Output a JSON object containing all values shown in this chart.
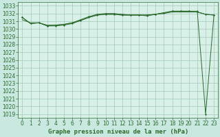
{
  "title": "Graphe pression niveau de la mer (hPa)",
  "background_color": "#c8e8e0",
  "plot_bg_color": "#d8f0e8",
  "grid_color": "#a0c8b8",
  "line_color": "#2d6a2d",
  "ylim": [
    1018.5,
    1033.5
  ],
  "yticks": [
    1019,
    1020,
    1021,
    1022,
    1023,
    1024,
    1025,
    1026,
    1027,
    1028,
    1029,
    1030,
    1031,
    1032,
    1033
  ],
  "xlim": [
    -0.5,
    23.5
  ],
  "xticks": [
    0,
    1,
    2,
    3,
    4,
    5,
    6,
    7,
    8,
    9,
    10,
    11,
    12,
    13,
    14,
    15,
    16,
    17,
    18,
    19,
    20,
    21,
    22,
    23
  ],
  "series": [
    [
      1031.2,
      1030.8,
      1030.8,
      1030.5,
      1030.5,
      1030.6,
      1030.8,
      1031.1,
      1031.5,
      1031.8,
      1031.9,
      1031.9,
      1031.8,
      1031.8,
      1031.8,
      1031.8,
      1031.9,
      1032.0,
      1032.2,
      1032.2,
      1032.2,
      1032.2,
      1031.9,
      1031.8
    ],
    [
      1031.5,
      1030.7,
      1030.8,
      1030.4,
      1030.4,
      1030.5,
      1030.7,
      1031.1,
      1031.5,
      1031.8,
      1031.9,
      1031.9,
      1031.8,
      1031.8,
      1031.8,
      1031.7,
      1031.9,
      1032.1,
      1032.3,
      1032.3,
      1032.3,
      1032.2,
      1031.9,
      1031.8
    ],
    [
      1031.5,
      1030.7,
      1030.8,
      1030.4,
      1030.5,
      1030.6,
      1030.8,
      1031.2,
      1031.6,
      1031.9,
      1032.0,
      1032.0,
      1031.9,
      1031.8,
      1031.8,
      1031.8,
      1031.9,
      1032.1,
      1032.3,
      1032.3,
      1032.3,
      1032.3,
      1019.0,
      1031.8
    ]
  ],
  "tick_fontsize": 5.5,
  "xlabel_fontsize": 6.5,
  "figsize": [
    3.2,
    2.0
  ],
  "dpi": 100
}
